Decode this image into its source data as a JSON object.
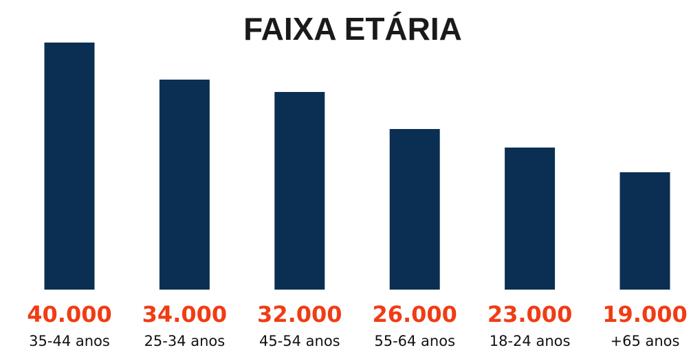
{
  "chart_data": {
    "type": "bar",
    "title": "FAIXA ETÁRIA",
    "categories": [
      "35-44 anos",
      "25-34 anos",
      "45-54 anos",
      "55-64 anos",
      "18-24 anos",
      "+65 anos"
    ],
    "values": [
      40000,
      34000,
      32000,
      26000,
      23000,
      19000
    ],
    "value_labels": [
      "40.000",
      "34.000",
      "32.000",
      "26.000",
      "23.000",
      "19.000"
    ],
    "color": "#0b2f52"
  }
}
